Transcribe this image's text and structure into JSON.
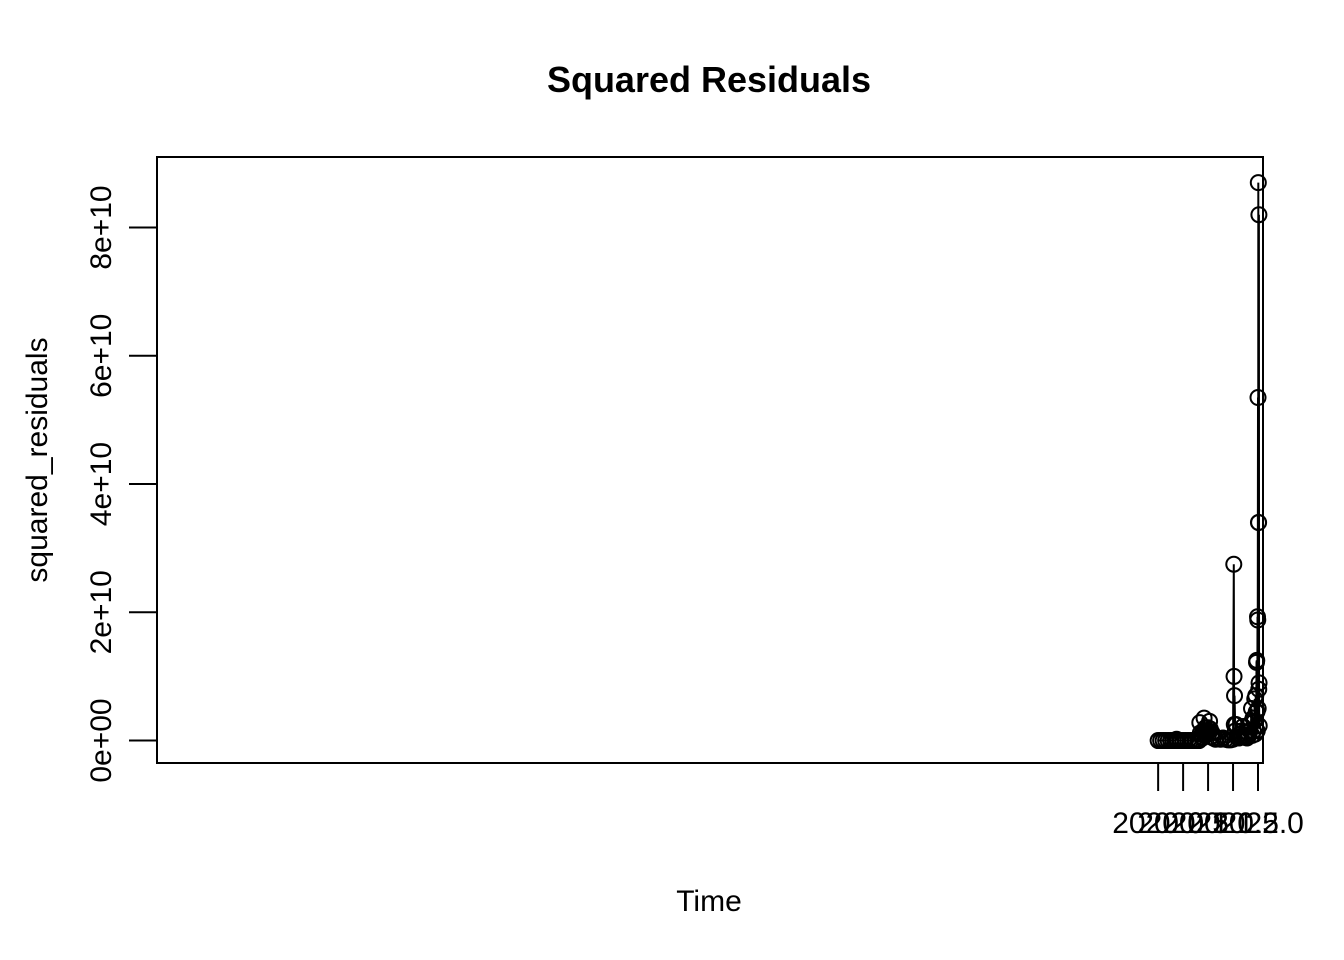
{
  "chart_data": {
    "type": "line",
    "title": "Squared Residuals",
    "xlabel": "Time",
    "ylabel": "squared_residuals",
    "xlim": [
      1999.95,
      2022.1
    ],
    "ylim": [
      -3500000000,
      91000000000
    ],
    "xticks": [
      2020.0,
      2020.5,
      2021.0,
      2021.5,
      2022.0
    ],
    "xtick_labels": [
      "2020.0",
      "2020.5",
      "2021.0",
      "2021.5",
      "2022.0"
    ],
    "yticks": [
      0,
      20000000000,
      40000000000,
      60000000000,
      80000000000
    ],
    "ytick_labels": [
      "0e+00",
      "2e+10",
      "4e+10",
      "6e+10",
      "8e+10"
    ],
    "grid": false,
    "legend": "none",
    "marker": "open-circle",
    "colors": {
      "line": "#000000",
      "background": "#ffffff"
    },
    "series": [
      {
        "x": [
          2020.0,
          2020.05,
          2020.1,
          2020.15,
          2020.2,
          2020.25,
          2020.3,
          2020.35,
          2020.37,
          2020.4,
          2020.45,
          2020.5,
          2020.55,
          2020.6,
          2020.65,
          2020.7,
          2020.75,
          2020.8,
          2020.82,
          2020.835,
          2020.845,
          2020.86,
          2020.875,
          2020.89,
          2020.905,
          2020.92,
          2020.935,
          2020.945,
          2020.955,
          2020.97,
          2020.985,
          2021.0,
          2021.015,
          2021.03,
          2021.045,
          2021.06,
          2021.08,
          2021.1,
          2021.15,
          2021.2,
          2021.25,
          2021.3,
          2021.35,
          2021.4,
          2021.45,
          2021.5,
          2021.515,
          2021.52,
          2021.525,
          2021.53,
          2021.545,
          2021.56,
          2021.58,
          2021.6,
          2021.62,
          2021.64,
          2021.66,
          2021.68,
          2021.7,
          2021.72,
          2021.74,
          2021.76,
          2021.78,
          2021.8,
          2021.82,
          2021.84,
          2021.86,
          2021.87,
          2021.885,
          2021.9,
          2021.91,
          2021.925,
          2021.935,
          2021.945,
          2021.955,
          2021.965,
          2021.97,
          2021.975,
          2021.98,
          2021.985,
          2021.99,
          2021.995,
          2022.0,
          2022.003,
          2022.006,
          2022.009,
          2022.012,
          2022.015,
          2022.018,
          2022.021,
          2022.024
        ],
        "y": [
          0,
          0,
          0,
          0,
          0,
          0,
          0,
          0,
          200000000,
          0,
          0,
          0,
          0,
          0,
          0,
          0,
          0,
          0,
          0,
          2800000000,
          1200000000,
          600000000,
          1000000000,
          400000000,
          1500000000,
          3500000000,
          800000000,
          2000000000,
          1500000000,
          900000000,
          1200000000,
          2000000000,
          1500000000,
          3000000000,
          1800000000,
          600000000,
          1200000000,
          400000000,
          200000000,
          300000000,
          200000000,
          400000000,
          200000000,
          100000000,
          100000000,
          200000000,
          27500000000,
          10000000000,
          2500000000,
          7000000000,
          1500000000,
          2500000000,
          500000000,
          800000000,
          400000000,
          1000000000,
          600000000,
          1500000000,
          2200000000,
          800000000,
          500000000,
          700000000,
          400000000,
          600000000,
          900000000,
          1500000000,
          2800000000,
          5000000000,
          800000000,
          3500000000,
          1500000000,
          3000000000,
          6500000000,
          1000000000,
          7000000000,
          4500000000,
          12200000000,
          12500000000,
          4500000000,
          1500000000,
          19300000000,
          18800000000,
          53500000000,
          5000000000,
          87000000000,
          34000000000,
          34000000000,
          8000000000,
          82000000000,
          9000000000,
          2300000000
        ]
      }
    ]
  }
}
